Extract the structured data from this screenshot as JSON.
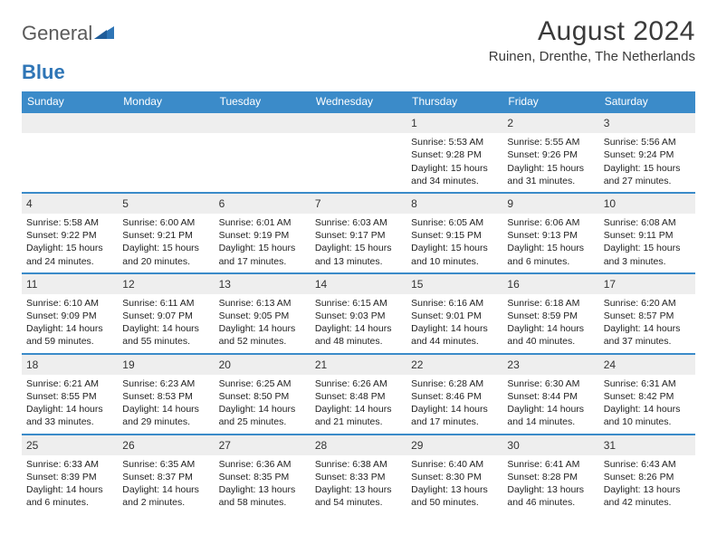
{
  "logo": {
    "general": "General",
    "blue": "Blue"
  },
  "title": "August 2024",
  "location": "Ruinen, Drenthe, The Netherlands",
  "colors": {
    "header_bar": "#3b8bc9",
    "header_text": "#ffffff",
    "daynum_bg": "#eeeeee",
    "week_border": "#3b8bc9",
    "text": "#222222",
    "logo_blue": "#2e75b6",
    "logo_gray": "#5a5a5a"
  },
  "fonts": {
    "title_size": 30,
    "location_size": 15,
    "weekday_size": 12,
    "body_size": 10.5
  },
  "weekdays": [
    "Sunday",
    "Monday",
    "Tuesday",
    "Wednesday",
    "Thursday",
    "Friday",
    "Saturday"
  ],
  "weeks": [
    [
      {
        "n": "",
        "sunrise": "",
        "sunset": "",
        "daylight": ""
      },
      {
        "n": "",
        "sunrise": "",
        "sunset": "",
        "daylight": ""
      },
      {
        "n": "",
        "sunrise": "",
        "sunset": "",
        "daylight": ""
      },
      {
        "n": "",
        "sunrise": "",
        "sunset": "",
        "daylight": ""
      },
      {
        "n": "1",
        "sunrise": "Sunrise: 5:53 AM",
        "sunset": "Sunset: 9:28 PM",
        "daylight": "Daylight: 15 hours and 34 minutes."
      },
      {
        "n": "2",
        "sunrise": "Sunrise: 5:55 AM",
        "sunset": "Sunset: 9:26 PM",
        "daylight": "Daylight: 15 hours and 31 minutes."
      },
      {
        "n": "3",
        "sunrise": "Sunrise: 5:56 AM",
        "sunset": "Sunset: 9:24 PM",
        "daylight": "Daylight: 15 hours and 27 minutes."
      }
    ],
    [
      {
        "n": "4",
        "sunrise": "Sunrise: 5:58 AM",
        "sunset": "Sunset: 9:22 PM",
        "daylight": "Daylight: 15 hours and 24 minutes."
      },
      {
        "n": "5",
        "sunrise": "Sunrise: 6:00 AM",
        "sunset": "Sunset: 9:21 PM",
        "daylight": "Daylight: 15 hours and 20 minutes."
      },
      {
        "n": "6",
        "sunrise": "Sunrise: 6:01 AM",
        "sunset": "Sunset: 9:19 PM",
        "daylight": "Daylight: 15 hours and 17 minutes."
      },
      {
        "n": "7",
        "sunrise": "Sunrise: 6:03 AM",
        "sunset": "Sunset: 9:17 PM",
        "daylight": "Daylight: 15 hours and 13 minutes."
      },
      {
        "n": "8",
        "sunrise": "Sunrise: 6:05 AM",
        "sunset": "Sunset: 9:15 PM",
        "daylight": "Daylight: 15 hours and 10 minutes."
      },
      {
        "n": "9",
        "sunrise": "Sunrise: 6:06 AM",
        "sunset": "Sunset: 9:13 PM",
        "daylight": "Daylight: 15 hours and 6 minutes."
      },
      {
        "n": "10",
        "sunrise": "Sunrise: 6:08 AM",
        "sunset": "Sunset: 9:11 PM",
        "daylight": "Daylight: 15 hours and 3 minutes."
      }
    ],
    [
      {
        "n": "11",
        "sunrise": "Sunrise: 6:10 AM",
        "sunset": "Sunset: 9:09 PM",
        "daylight": "Daylight: 14 hours and 59 minutes."
      },
      {
        "n": "12",
        "sunrise": "Sunrise: 6:11 AM",
        "sunset": "Sunset: 9:07 PM",
        "daylight": "Daylight: 14 hours and 55 minutes."
      },
      {
        "n": "13",
        "sunrise": "Sunrise: 6:13 AM",
        "sunset": "Sunset: 9:05 PM",
        "daylight": "Daylight: 14 hours and 52 minutes."
      },
      {
        "n": "14",
        "sunrise": "Sunrise: 6:15 AM",
        "sunset": "Sunset: 9:03 PM",
        "daylight": "Daylight: 14 hours and 48 minutes."
      },
      {
        "n": "15",
        "sunrise": "Sunrise: 6:16 AM",
        "sunset": "Sunset: 9:01 PM",
        "daylight": "Daylight: 14 hours and 44 minutes."
      },
      {
        "n": "16",
        "sunrise": "Sunrise: 6:18 AM",
        "sunset": "Sunset: 8:59 PM",
        "daylight": "Daylight: 14 hours and 40 minutes."
      },
      {
        "n": "17",
        "sunrise": "Sunrise: 6:20 AM",
        "sunset": "Sunset: 8:57 PM",
        "daylight": "Daylight: 14 hours and 37 minutes."
      }
    ],
    [
      {
        "n": "18",
        "sunrise": "Sunrise: 6:21 AM",
        "sunset": "Sunset: 8:55 PM",
        "daylight": "Daylight: 14 hours and 33 minutes."
      },
      {
        "n": "19",
        "sunrise": "Sunrise: 6:23 AM",
        "sunset": "Sunset: 8:53 PM",
        "daylight": "Daylight: 14 hours and 29 minutes."
      },
      {
        "n": "20",
        "sunrise": "Sunrise: 6:25 AM",
        "sunset": "Sunset: 8:50 PM",
        "daylight": "Daylight: 14 hours and 25 minutes."
      },
      {
        "n": "21",
        "sunrise": "Sunrise: 6:26 AM",
        "sunset": "Sunset: 8:48 PM",
        "daylight": "Daylight: 14 hours and 21 minutes."
      },
      {
        "n": "22",
        "sunrise": "Sunrise: 6:28 AM",
        "sunset": "Sunset: 8:46 PM",
        "daylight": "Daylight: 14 hours and 17 minutes."
      },
      {
        "n": "23",
        "sunrise": "Sunrise: 6:30 AM",
        "sunset": "Sunset: 8:44 PM",
        "daylight": "Daylight: 14 hours and 14 minutes."
      },
      {
        "n": "24",
        "sunrise": "Sunrise: 6:31 AM",
        "sunset": "Sunset: 8:42 PM",
        "daylight": "Daylight: 14 hours and 10 minutes."
      }
    ],
    [
      {
        "n": "25",
        "sunrise": "Sunrise: 6:33 AM",
        "sunset": "Sunset: 8:39 PM",
        "daylight": "Daylight: 14 hours and 6 minutes."
      },
      {
        "n": "26",
        "sunrise": "Sunrise: 6:35 AM",
        "sunset": "Sunset: 8:37 PM",
        "daylight": "Daylight: 14 hours and 2 minutes."
      },
      {
        "n": "27",
        "sunrise": "Sunrise: 6:36 AM",
        "sunset": "Sunset: 8:35 PM",
        "daylight": "Daylight: 13 hours and 58 minutes."
      },
      {
        "n": "28",
        "sunrise": "Sunrise: 6:38 AM",
        "sunset": "Sunset: 8:33 PM",
        "daylight": "Daylight: 13 hours and 54 minutes."
      },
      {
        "n": "29",
        "sunrise": "Sunrise: 6:40 AM",
        "sunset": "Sunset: 8:30 PM",
        "daylight": "Daylight: 13 hours and 50 minutes."
      },
      {
        "n": "30",
        "sunrise": "Sunrise: 6:41 AM",
        "sunset": "Sunset: 8:28 PM",
        "daylight": "Daylight: 13 hours and 46 minutes."
      },
      {
        "n": "31",
        "sunrise": "Sunrise: 6:43 AM",
        "sunset": "Sunset: 8:26 PM",
        "daylight": "Daylight: 13 hours and 42 minutes."
      }
    ]
  ]
}
